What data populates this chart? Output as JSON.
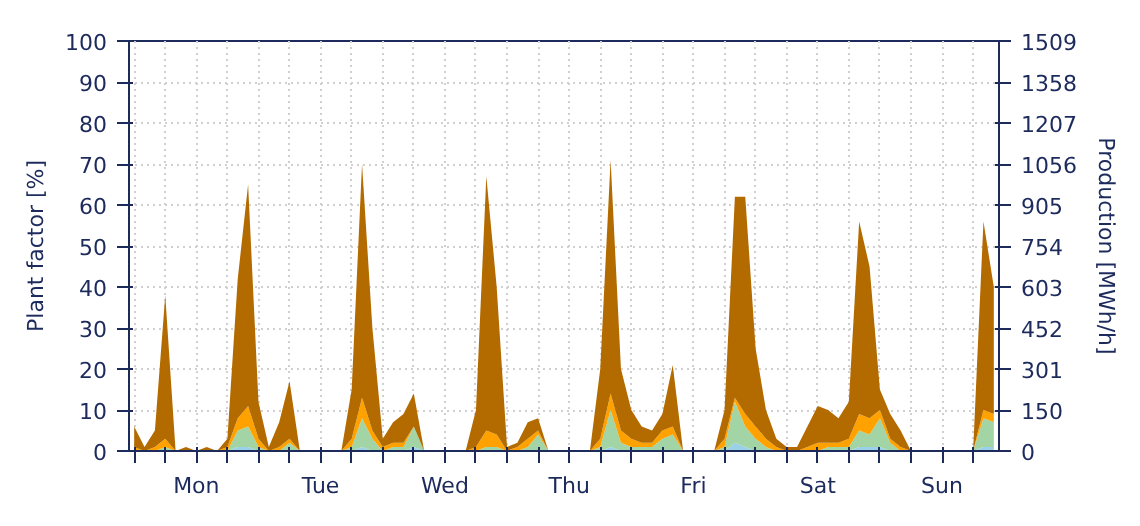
{
  "chart_data": {
    "type": "area",
    "stacked": true,
    "ylabel": "Plant factor [%]",
    "y2label": "Production [MWh/h]",
    "categories": [
      null,
      null,
      null,
      null,
      null,
      null,
      "Mon",
      null,
      null,
      null,
      null,
      null,
      null,
      null,
      null,
      null,
      null,
      null,
      "Tue",
      null,
      null,
      null,
      null,
      null,
      null,
      null,
      null,
      null,
      null,
      null,
      "Wed",
      null,
      null,
      null,
      null,
      null,
      null,
      null,
      null,
      null,
      null,
      null,
      "Thu",
      null,
      null,
      null,
      null,
      null,
      null,
      null,
      null,
      null,
      null,
      null,
      "Fri",
      null,
      null,
      null,
      null,
      null,
      null,
      null,
      null,
      null,
      null,
      null,
      "Sat",
      null,
      null,
      null,
      null,
      null,
      null,
      null,
      null,
      null,
      null,
      null,
      "Sun",
      null,
      null,
      null,
      null,
      null
    ],
    "series": [
      {
        "color": "#9ad1e8",
        "values": [
          0,
          0,
          0,
          0,
          0,
          0,
          0,
          0,
          0,
          0,
          1,
          1,
          0,
          0,
          0,
          0,
          0,
          0,
          0,
          0,
          0,
          0,
          1,
          0,
          0,
          0,
          0,
          1,
          0,
          0,
          0,
          0,
          0,
          0,
          0,
          0,
          0,
          0,
          0,
          0,
          0,
          0,
          0,
          0,
          0,
          0,
          1,
          0,
          0,
          0,
          0,
          0,
          0,
          0,
          0,
          0,
          0,
          0,
          2,
          1,
          0,
          0,
          0,
          0,
          0,
          0,
          0,
          0,
          0,
          0,
          1,
          1,
          1,
          0,
          0,
          0,
          0,
          0,
          0,
          0,
          0,
          0,
          1,
          1
        ]
      },
      {
        "color": "#a3d4a5",
        "values": [
          0,
          0,
          0,
          1,
          0,
          0,
          0,
          0,
          0,
          0,
          4,
          5,
          1,
          0,
          0,
          2,
          0,
          0,
          0,
          0,
          0,
          1,
          7,
          3,
          0,
          1,
          1,
          5,
          0,
          0,
          0,
          0,
          0,
          0,
          1,
          1,
          0,
          0,
          1,
          4,
          0,
          0,
          0,
          0,
          0,
          1,
          9,
          2,
          1,
          1,
          1,
          3,
          4,
          0,
          0,
          0,
          0,
          1,
          10,
          5,
          3,
          1,
          0,
          0,
          0,
          0,
          0,
          1,
          1,
          1,
          4,
          3,
          7,
          2,
          0,
          0,
          0,
          0,
          0,
          0,
          0,
          0,
          7,
          6
        ]
      },
      {
        "color": "#ffa200",
        "values": [
          1,
          0,
          1,
          2,
          0,
          0,
          0,
          0,
          0,
          1,
          3,
          5,
          2,
          0,
          1,
          1,
          0,
          0,
          0,
          0,
          0,
          2,
          5,
          2,
          1,
          1,
          1,
          0,
          0,
          0,
          0,
          0,
          0,
          1,
          4,
          3,
          0,
          1,
          2,
          1,
          0,
          0,
          0,
          0,
          0,
          2,
          4,
          3,
          2,
          1,
          1,
          2,
          2,
          0,
          0,
          0,
          0,
          2,
          1,
          3,
          3,
          2,
          1,
          0,
          0,
          1,
          2,
          1,
          1,
          2,
          4,
          4,
          2,
          1,
          1,
          0,
          0,
          0,
          0,
          0,
          0,
          0,
          2,
          2
        ]
      },
      {
        "color": "#b36b00",
        "values": [
          5,
          1,
          4,
          35,
          0,
          1,
          0,
          1,
          0,
          2,
          34,
          54,
          9,
          1,
          6,
          14,
          0,
          0,
          0,
          0,
          0,
          12,
          57,
          25,
          2,
          5,
          7,
          8,
          0,
          0,
          0,
          0,
          0,
          9,
          62,
          36,
          1,
          1,
          4,
          3,
          0,
          0,
          0,
          0,
          0,
          17,
          57,
          15,
          7,
          4,
          3,
          4,
          15,
          0,
          0,
          0,
          0,
          7,
          49,
          53,
          19,
          7,
          2,
          1,
          1,
          5,
          9,
          8,
          6,
          9,
          47,
          37,
          5,
          6,
          4,
          0,
          0,
          0,
          0,
          0,
          0,
          0,
          46,
          31
        ]
      }
    ],
    "ylim": [
      0,
      100
    ],
    "yticks": [
      0,
      10,
      20,
      30,
      40,
      50,
      60,
      70,
      80,
      90,
      100
    ],
    "y2lim": [
      0,
      1509
    ],
    "y2ticks": [
      0,
      150,
      301,
      452,
      603,
      754,
      905,
      1056,
      1207,
      1358,
      1509
    ],
    "grid": true
  }
}
